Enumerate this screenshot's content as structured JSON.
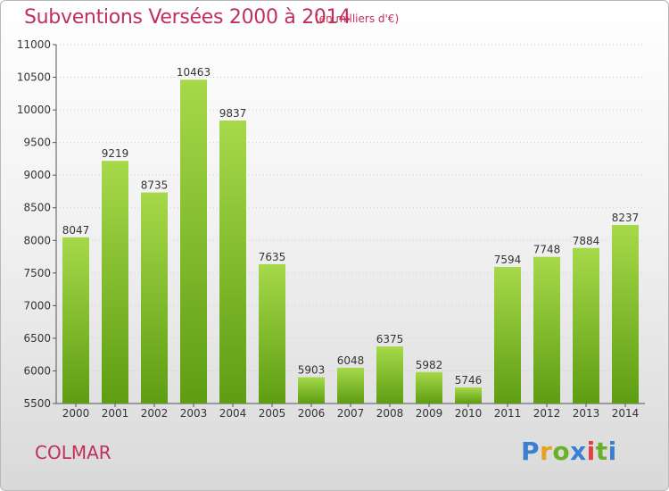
{
  "header": {
    "title": "Subventions Versées 2000 à 2014",
    "subtitle": "(en milliers d'€)"
  },
  "footer": {
    "city": "COLMAR",
    "logo": "Proxiti"
  },
  "colors": {
    "title": "#c0305a",
    "bar_light": "#a6d94a",
    "bar_dark": "#5e9d12",
    "logo_letters": [
      "#3a7fd0",
      "#e8a020",
      "#6ab02a",
      "#3a7fd0",
      "#e84040",
      "#6ab02a",
      "#3a7fd0"
    ]
  },
  "chart_data": {
    "type": "bar",
    "title": "Subventions Versées 2000 à 2014",
    "subtitle": "(en milliers d'€)",
    "categories": [
      "2000",
      "2001",
      "2002",
      "2003",
      "2004",
      "2005",
      "2006",
      "2007",
      "2008",
      "2009",
      "2010",
      "2011",
      "2012",
      "2013",
      "2014"
    ],
    "values": [
      8047,
      9219,
      8735,
      10463,
      9837,
      7635,
      5903,
      6048,
      6375,
      5982,
      5746,
      7594,
      7748,
      7884,
      8237
    ],
    "ylim": [
      5500,
      11000
    ],
    "yticks": [
      5500,
      6000,
      6500,
      7000,
      7500,
      8000,
      8500,
      9000,
      9500,
      10000,
      10500,
      11000
    ],
    "xlabel": "",
    "ylabel": "",
    "grid": true
  }
}
